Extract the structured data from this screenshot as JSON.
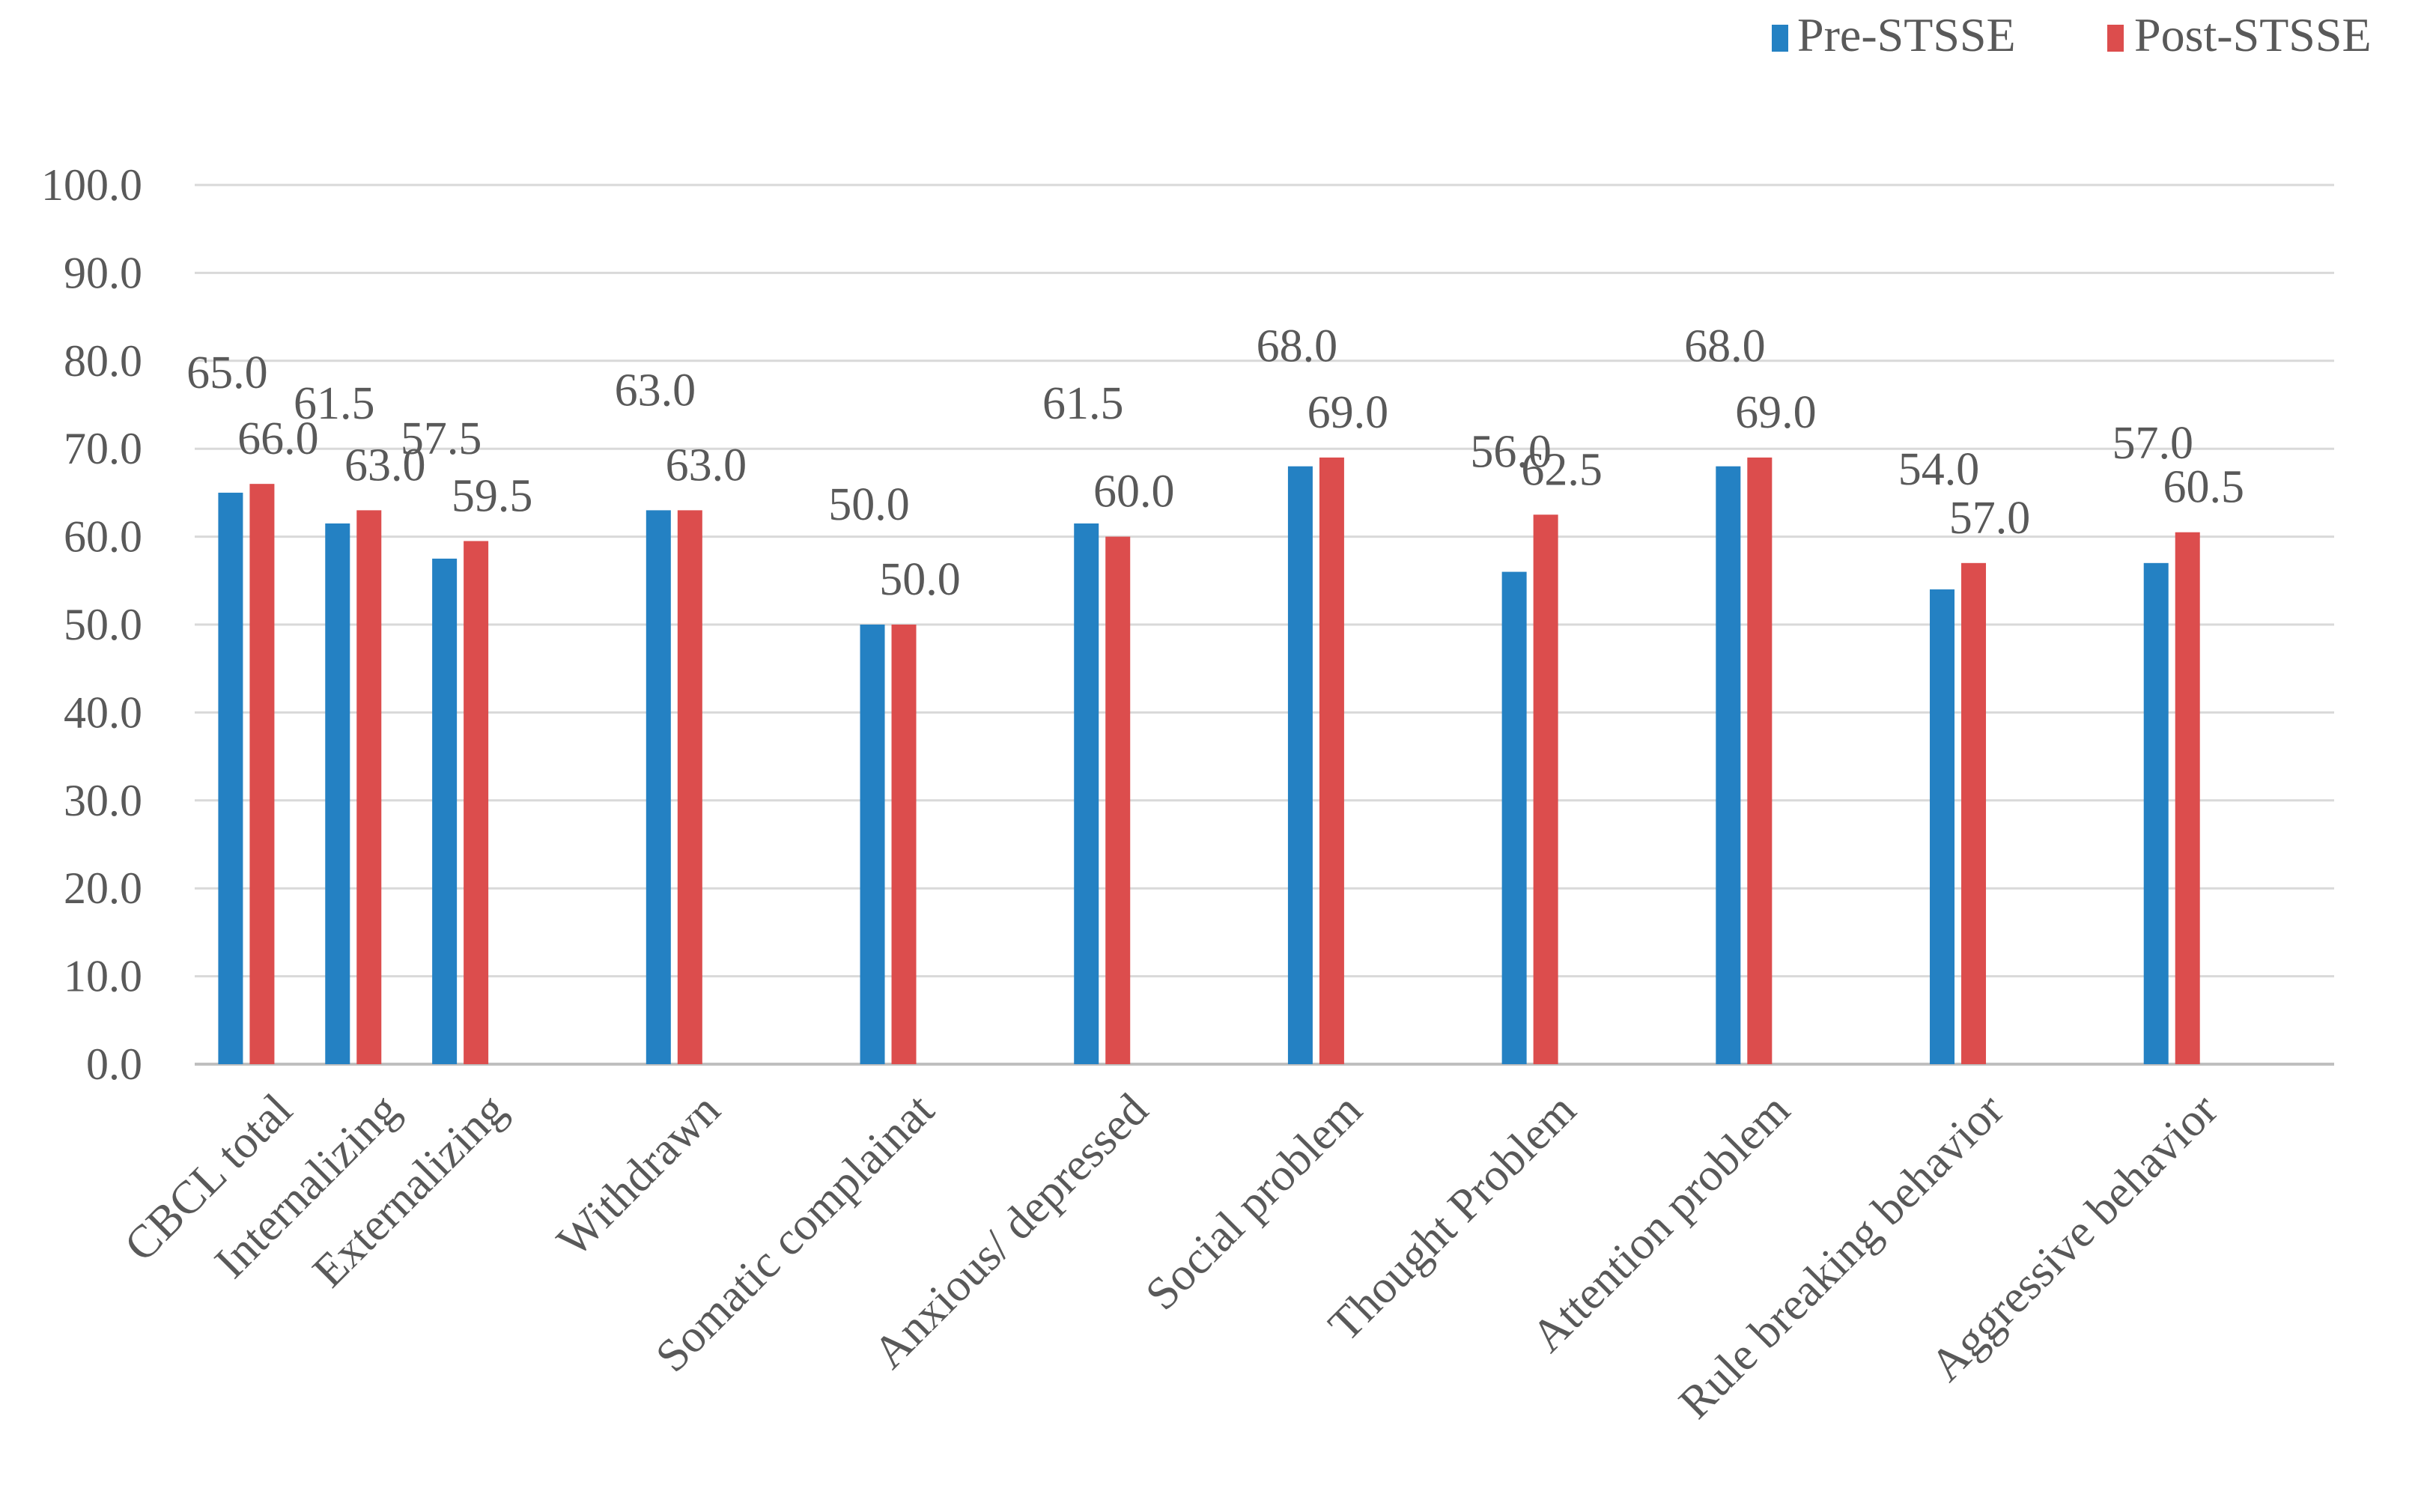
{
  "chart_data": {
    "type": "bar",
    "title": "",
    "xlabel": "",
    "ylabel": "",
    "ylim": [
      0,
      100
    ],
    "yticks": [
      "0.0",
      "10.0",
      "20.0",
      "30.0",
      "40.0",
      "50.0",
      "60.0",
      "70.0",
      "80.0",
      "90.0",
      "100.0"
    ],
    "grid": true,
    "legend_position": "top-right",
    "categories": [
      "CBCL total",
      "Internalizing",
      "Externalizing",
      "",
      "Withdrawn",
      "",
      "Somatic complainat",
      "",
      "Anxious/ depressed",
      "",
      "Social problem",
      "",
      "Thought Problem",
      "",
      "Attention problem",
      "",
      "Rule breaking behavior",
      "",
      "Aggressive behavior",
      ""
    ],
    "series": [
      {
        "name": "Pre-STSSE",
        "color": "#2481c3",
        "values": [
          65.0,
          61.5,
          57.5,
          null,
          63.0,
          null,
          50.0,
          null,
          61.5,
          null,
          68.0,
          null,
          56.0,
          null,
          68.0,
          null,
          54.0,
          null,
          57.0,
          null
        ],
        "labels": [
          "65.0",
          "61.5",
          "57.5",
          "",
          "63.0",
          "",
          "50.0",
          "",
          "61.5",
          "",
          "68.0",
          "",
          "56.0",
          "",
          "68.0",
          "",
          "54.0",
          "",
          "57.0",
          ""
        ]
      },
      {
        "name": "Post-STSSE",
        "color": "#dc4d4d",
        "values": [
          66.0,
          63.0,
          59.5,
          null,
          63.0,
          null,
          50.0,
          null,
          60.0,
          null,
          69.0,
          null,
          62.5,
          null,
          69.0,
          null,
          57.0,
          null,
          60.5,
          null
        ],
        "labels": [
          "66.0",
          "63.0",
          "59.5",
          "",
          "63.0",
          "",
          "50.0",
          "",
          "60.0",
          "",
          "69.0",
          "",
          "62.5",
          "",
          "69.0",
          "",
          "57.0",
          "",
          "60.5",
          ""
        ]
      }
    ]
  }
}
